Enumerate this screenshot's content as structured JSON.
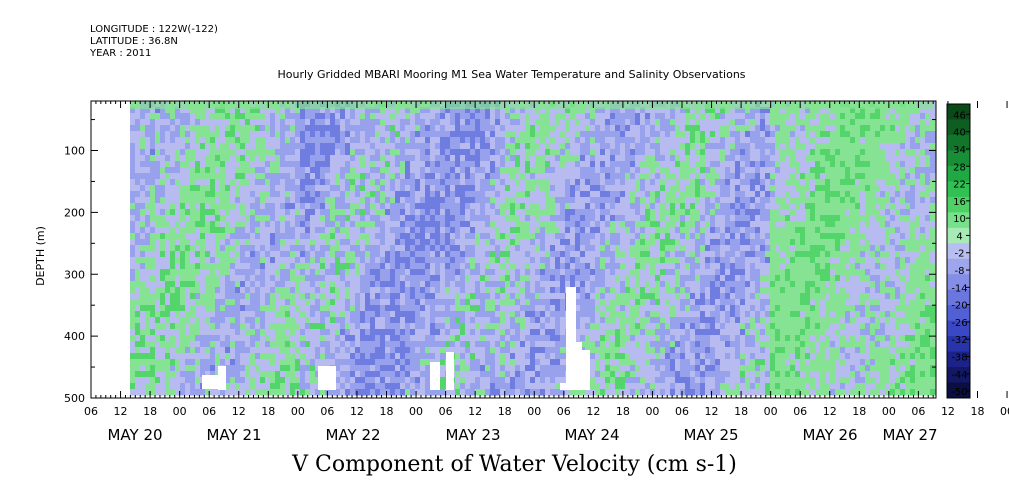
{
  "header": {
    "longitude": "LONGITUDE : 122W(-122)",
    "latitude": "LATITUDE : 36.8N",
    "year": "YEAR : 2011"
  },
  "chart_data": {
    "type": "heatmap",
    "title": "Hourly Gridded MBARI Mooring M1 Sea Water Temperature and Salinity Observations",
    "subtitle": "V Component of Water Velocity (cm s-1)",
    "ylabel": "DEPTH (m)",
    "y_range": [
      500,
      20
    ],
    "y_ticks": [
      100,
      200,
      300,
      400,
      500
    ],
    "x_hour_ticks": [
      "06",
      "12",
      "18",
      "00",
      "06",
      "12",
      "18",
      "00",
      "06",
      "12",
      "18",
      "00",
      "06",
      "12",
      "18",
      "00",
      "06",
      "12",
      "18",
      "00",
      "06",
      "12",
      "18",
      "00",
      "06",
      "12",
      "18",
      "00",
      "06",
      "12",
      "18",
      "00",
      "06"
    ],
    "x_day_labels": [
      "MAY 20",
      "MAY 21",
      "MAY 22",
      "MAY 23",
      "MAY 24",
      "MAY 25",
      "MAY 26",
      "MAY 27"
    ],
    "colorbar": {
      "ticks": [
        "46",
        "40",
        "34",
        "28",
        "22",
        "16",
        "10",
        "4",
        "-2",
        "-8",
        "-14",
        "-20",
        "-26",
        "-32",
        "-38",
        "-44",
        "-50"
      ],
      "colors": [
        "#0a4a18",
        "#0e5e22",
        "#12752c",
        "#188f37",
        "#20a844",
        "#31c052",
        "#4fd065",
        "#76e08a",
        "#a8eab5",
        "#b8bff0",
        "#9ea6ec",
        "#858ee6",
        "#6b77df",
        "#5260d6",
        "#3b48c6",
        "#2933ab",
        "#1b2389",
        "#121864",
        "#0a0e40"
      ]
    },
    "field_colors": {
      "strong_positive": "#54d56c",
      "positive": "#86e394",
      "weak": "#b7bbf0",
      "negative": "#98a1ec",
      "strong_negative": "#6f7ce0"
    }
  }
}
